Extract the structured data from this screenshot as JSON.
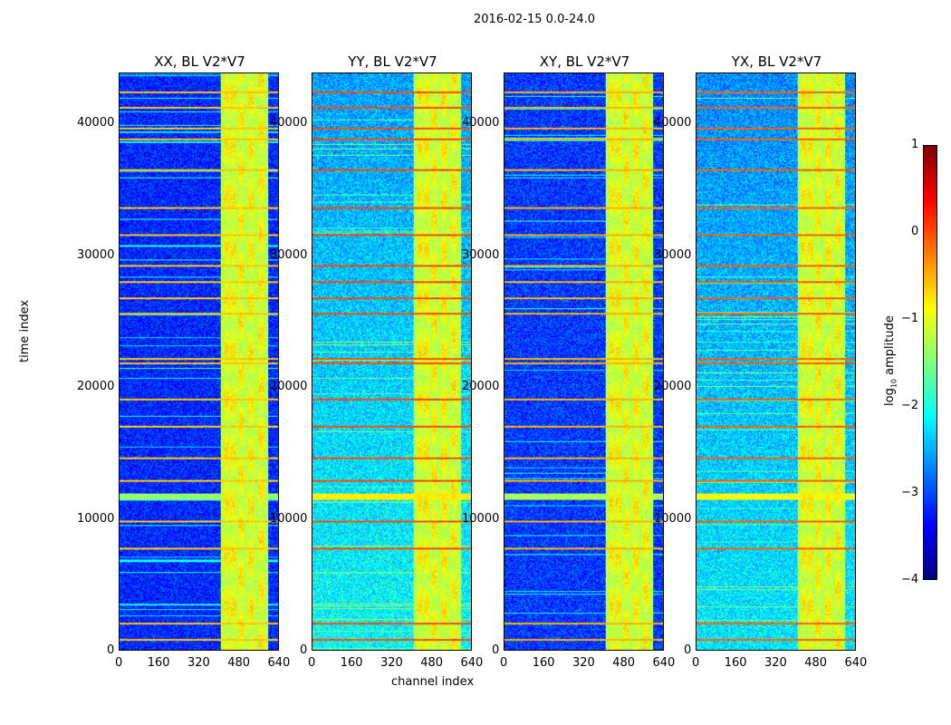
{
  "suptitle": "2016-02-15 0.0-24.0",
  "xlabel": "channel index",
  "ylabel": "time index",
  "colorbar": {
    "label_prefix": "log",
    "label_sub": "10",
    "label_suffix": " amplitude",
    "ticks": [
      "1",
      "0",
      "−1",
      "−2",
      "−3",
      "−4"
    ],
    "values": [
      1,
      0,
      -1,
      -2,
      -3,
      -4
    ],
    "range": [
      -4,
      1
    ],
    "colormap": "jet"
  },
  "chart_data": {
    "type": "heatmap",
    "title": "2016-02-15 0.0-24.0",
    "xlabel": "channel index",
    "ylabel": "time index",
    "xlim": [
      0,
      640
    ],
    "ylim": [
      0,
      43850
    ],
    "xticks": [
      0,
      160,
      320,
      480,
      640
    ],
    "yticks": [
      0,
      10000,
      20000,
      30000,
      40000
    ],
    "panels": [
      {
        "title": "XX, BL V2*V7",
        "background_level": -3.2
      },
      {
        "title": "YY, BL V2*V7",
        "background_level": -2.6
      },
      {
        "title": "XY, BL V2*V7",
        "background_level": -3.1
      },
      {
        "title": "YX, BL V2*V7",
        "background_level": -2.7
      }
    ],
    "rfi_channel_band": [
      405,
      600
    ],
    "rfi_channel_columns": [
      [
        420,
        440
      ],
      [
        445,
        470
      ],
      [
        480,
        500
      ],
      [
        520,
        540
      ],
      [
        560,
        580
      ]
    ],
    "rfi_time_rows": [
      42470,
      41300,
      39720,
      38900,
      36560,
      33680,
      31610,
      29280,
      28040,
      26800,
      25640,
      22200,
      21860,
      19110,
      17040,
      14640,
      12920,
      9830,
      7770,
      2060,
      820
    ],
    "broadband_time_band": [
      11500,
      11900
    ]
  }
}
